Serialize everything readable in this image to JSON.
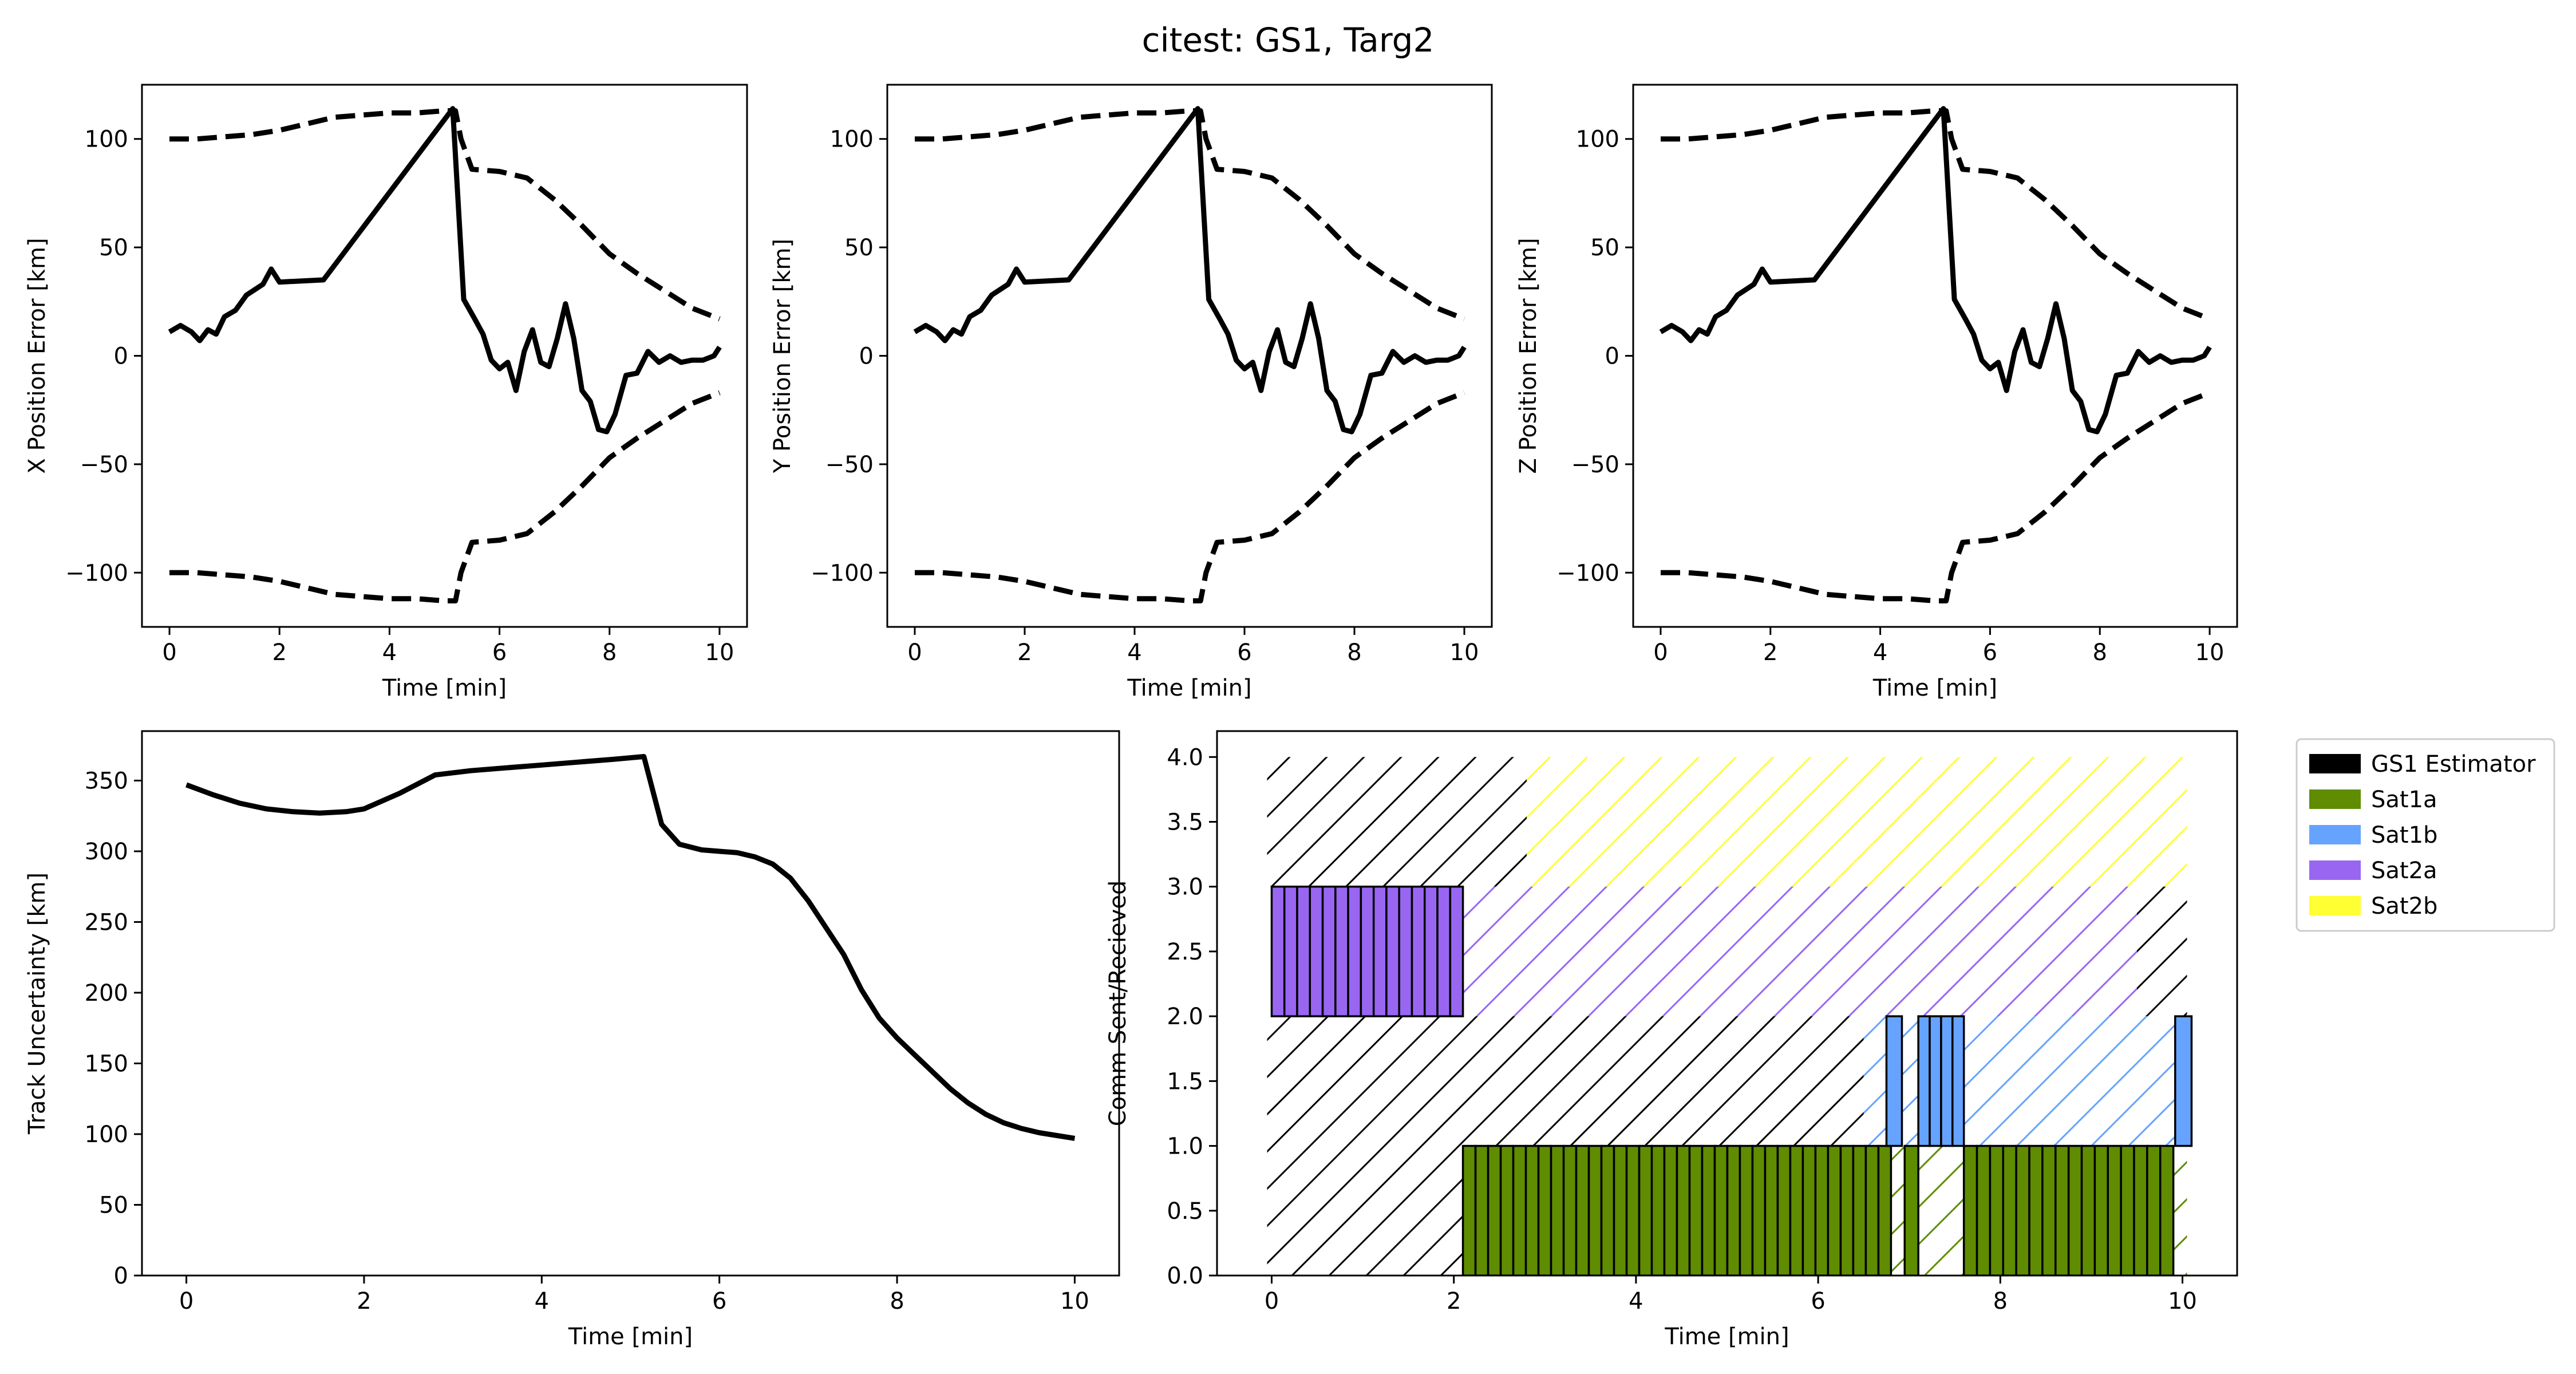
{
  "title": "citest: GS1, Targ2",
  "chart_data": [
    {
      "id": "x_error",
      "type": "line",
      "xlabel": "Time [min]",
      "ylabel": "X Position Error [km]",
      "xlim": [
        -0.5,
        10.5
      ],
      "ylim": [
        -125,
        125
      ],
      "xticks": [
        0,
        2,
        4,
        6,
        8,
        10
      ],
      "yticks": [
        -100,
        -50,
        0,
        50,
        100
      ],
      "grid": false,
      "series": [
        {
          "role": "error",
          "style": "solid",
          "x": [
            0,
            0.2,
            0.4,
            0.55,
            0.7,
            0.85,
            1.0,
            1.2,
            1.4,
            1.7,
            1.85,
            2.0,
            2.8,
            5.15,
            5.35,
            5.55,
            5.7,
            5.85,
            6.0,
            6.15,
            6.3,
            6.45,
            6.6,
            6.75,
            6.9,
            7.05,
            7.2,
            7.35,
            7.5,
            7.65,
            7.8,
            7.95,
            8.1,
            8.3,
            8.5,
            8.7,
            8.9,
            9.1,
            9.3,
            9.5,
            9.7,
            9.9,
            10.0
          ],
          "y": [
            11,
            14,
            11,
            7,
            12,
            10,
            18,
            21,
            28,
            33,
            40,
            34,
            35,
            114,
            26,
            17,
            10,
            -2,
            -6,
            -3,
            -16,
            2,
            12,
            -3,
            -5,
            8,
            24,
            8,
            -16,
            -21,
            -34,
            -35,
            -27,
            -9,
            -8,
            2,
            -3,
            0,
            -3,
            -2,
            -2,
            0,
            4
          ]
        },
        {
          "role": "upper_bound",
          "style": "dashed",
          "x": [
            0,
            0.5,
            1,
            1.5,
            2,
            2.5,
            3,
            3.5,
            4,
            4.5,
            5,
            5.2,
            5.3,
            5.5,
            6,
            6.5,
            7,
            7.5,
            8,
            8.5,
            9,
            9.5,
            10
          ],
          "y": [
            100,
            100,
            101,
            102,
            104,
            107,
            110,
            111,
            112,
            112,
            113,
            113,
            100,
            86,
            85,
            82,
            72,
            60,
            47,
            38,
            30,
            22,
            17
          ]
        },
        {
          "role": "lower_bound",
          "style": "dashed",
          "x": [
            0,
            0.5,
            1,
            1.5,
            2,
            2.5,
            3,
            3.5,
            4,
            4.5,
            5,
            5.2,
            5.3,
            5.5,
            6,
            6.5,
            7,
            7.5,
            8,
            8.5,
            9,
            9.5,
            10
          ],
          "y": [
            -100,
            -100,
            -101,
            -102,
            -104,
            -107,
            -110,
            -111,
            -112,
            -112,
            -113,
            -113,
            -100,
            -86,
            -85,
            -82,
            -72,
            -60,
            -47,
            -38,
            -30,
            -22,
            -17
          ]
        }
      ]
    },
    {
      "id": "y_error",
      "type": "line",
      "xlabel": "Time [min]",
      "ylabel": "Y Position Error [km]",
      "xlim": [
        -0.5,
        10.5
      ],
      "ylim": [
        -125,
        125
      ],
      "xticks": [
        0,
        2,
        4,
        6,
        8,
        10
      ],
      "yticks": [
        -100,
        -50,
        0,
        50,
        100
      ],
      "grid": false,
      "series": [
        {
          "role": "error",
          "style": "solid",
          "x": [
            0,
            0.2,
            0.4,
            0.55,
            0.7,
            0.85,
            1.0,
            1.2,
            1.4,
            1.7,
            1.85,
            2.0,
            2.8,
            5.15,
            5.35,
            5.55,
            5.7,
            5.85,
            6.0,
            6.15,
            6.3,
            6.45,
            6.6,
            6.75,
            6.9,
            7.05,
            7.2,
            7.35,
            7.5,
            7.65,
            7.8,
            7.95,
            8.1,
            8.3,
            8.5,
            8.7,
            8.9,
            9.1,
            9.3,
            9.5,
            9.7,
            9.9,
            10.0
          ],
          "y": [
            11,
            14,
            11,
            7,
            12,
            10,
            18,
            21,
            28,
            33,
            40,
            34,
            35,
            114,
            26,
            17,
            10,
            -2,
            -6,
            -3,
            -16,
            2,
            12,
            -3,
            -5,
            8,
            24,
            8,
            -16,
            -21,
            -34,
            -35,
            -27,
            -9,
            -8,
            2,
            -3,
            0,
            -3,
            -2,
            -2,
            0,
            4
          ]
        },
        {
          "role": "upper_bound",
          "style": "dashed",
          "x": [
            0,
            0.5,
            1,
            1.5,
            2,
            2.5,
            3,
            3.5,
            4,
            4.5,
            5,
            5.2,
            5.3,
            5.5,
            6,
            6.5,
            7,
            7.5,
            8,
            8.5,
            9,
            9.5,
            10
          ],
          "y": [
            100,
            100,
            101,
            102,
            104,
            107,
            110,
            111,
            112,
            112,
            113,
            113,
            100,
            86,
            85,
            82,
            72,
            60,
            47,
            38,
            30,
            22,
            17
          ]
        },
        {
          "role": "lower_bound",
          "style": "dashed",
          "x": [
            0,
            0.5,
            1,
            1.5,
            2,
            2.5,
            3,
            3.5,
            4,
            4.5,
            5,
            5.2,
            5.3,
            5.5,
            6,
            6.5,
            7,
            7.5,
            8,
            8.5,
            9,
            9.5,
            10
          ],
          "y": [
            -100,
            -100,
            -101,
            -102,
            -104,
            -107,
            -110,
            -111,
            -112,
            -112,
            -113,
            -113,
            -100,
            -86,
            -85,
            -82,
            -72,
            -60,
            -47,
            -38,
            -30,
            -22,
            -17
          ]
        }
      ]
    },
    {
      "id": "z_error",
      "type": "line",
      "xlabel": "Time [min]",
      "ylabel": "Z Position Error [km]",
      "xlim": [
        -0.5,
        10.5
      ],
      "ylim": [
        -125,
        125
      ],
      "xticks": [
        0,
        2,
        4,
        6,
        8,
        10
      ],
      "yticks": [
        -100,
        -50,
        0,
        50,
        100
      ],
      "grid": false,
      "series": [
        {
          "role": "error",
          "style": "solid",
          "x": [
            0,
            0.2,
            0.4,
            0.55,
            0.7,
            0.85,
            1.0,
            1.2,
            1.4,
            1.7,
            1.85,
            2.0,
            2.8,
            5.15,
            5.35,
            5.55,
            5.7,
            5.85,
            6.0,
            6.15,
            6.3,
            6.45,
            6.6,
            6.75,
            6.9,
            7.05,
            7.2,
            7.35,
            7.5,
            7.65,
            7.8,
            7.95,
            8.1,
            8.3,
            8.5,
            8.7,
            8.9,
            9.1,
            9.3,
            9.5,
            9.7,
            9.9,
            10.0
          ],
          "y": [
            11,
            14,
            11,
            7,
            12,
            10,
            18,
            21,
            28,
            33,
            40,
            34,
            35,
            114,
            26,
            17,
            10,
            -2,
            -6,
            -3,
            -16,
            2,
            12,
            -3,
            -5,
            8,
            24,
            8,
            -16,
            -21,
            -34,
            -35,
            -27,
            -9,
            -8,
            2,
            -3,
            0,
            -3,
            -2,
            -2,
            0,
            4
          ]
        },
        {
          "role": "upper_bound",
          "style": "dashed",
          "x": [
            0,
            0.5,
            1,
            1.5,
            2,
            2.5,
            3,
            3.5,
            4,
            4.5,
            5,
            5.2,
            5.3,
            5.5,
            6,
            6.5,
            7,
            7.5,
            8,
            8.5,
            9,
            9.5,
            10
          ],
          "y": [
            100,
            100,
            101,
            102,
            104,
            107,
            110,
            111,
            112,
            112,
            113,
            113,
            100,
            86,
            85,
            82,
            72,
            60,
            47,
            38,
            30,
            22,
            17
          ]
        },
        {
          "role": "lower_bound",
          "style": "dashed",
          "x": [
            0,
            0.5,
            1,
            1.5,
            2,
            2.5,
            3,
            3.5,
            4,
            4.5,
            5,
            5.2,
            5.3,
            5.5,
            6,
            6.5,
            7,
            7.5,
            8,
            8.5,
            9,
            9.5,
            10
          ],
          "y": [
            -100,
            -100,
            -101,
            -102,
            -104,
            -107,
            -110,
            -111,
            -112,
            -112,
            -113,
            -113,
            -100,
            -86,
            -85,
            -82,
            -72,
            -60,
            -47,
            -38,
            -30,
            -22,
            -17
          ]
        }
      ]
    },
    {
      "id": "track_uncertainty",
      "type": "line",
      "xlabel": "Time [min]",
      "ylabel": "Track Uncertainty [km]",
      "xlim": [
        -0.5,
        10.5
      ],
      "ylim": [
        0,
        385
      ],
      "xticks": [
        0,
        2,
        4,
        6,
        8,
        10
      ],
      "yticks": [
        0,
        50,
        100,
        150,
        200,
        250,
        300,
        350
      ],
      "grid": false,
      "series": [
        {
          "role": "uncertainty",
          "style": "solid",
          "x": [
            0,
            0.3,
            0.6,
            0.9,
            1.2,
            1.5,
            1.8,
            2.0,
            2.4,
            2.8,
            3.2,
            3.6,
            4.0,
            4.4,
            4.8,
            5.15,
            5.35,
            5.55,
            5.8,
            6.0,
            6.2,
            6.4,
            6.6,
            6.8,
            7.0,
            7.2,
            7.4,
            7.6,
            7.8,
            8.0,
            8.2,
            8.4,
            8.6,
            8.8,
            9.0,
            9.2,
            9.4,
            9.6,
            9.8,
            10.0
          ],
          "y": [
            347,
            340,
            334,
            330,
            328,
            327,
            328,
            330,
            341,
            354,
            357,
            359,
            361,
            363,
            365,
            367,
            319,
            305,
            301,
            300,
            299,
            296,
            291,
            281,
            265,
            246,
            227,
            202,
            182,
            168,
            156,
            144,
            132,
            122,
            114,
            108,
            104,
            101,
            99,
            97
          ]
        }
      ]
    },
    {
      "id": "comm",
      "type": "bar",
      "xlabel": "Time [min]",
      "ylabel": "Comm Sent/Recieved",
      "xlim": [
        -0.6,
        10.6
      ],
      "ylim": [
        0,
        4.2
      ],
      "xticks": [
        0,
        2,
        4,
        6,
        8,
        10
      ],
      "yticks": [
        0.0,
        0.5,
        1.0,
        1.5,
        2.0,
        2.5,
        3.0,
        3.5,
        4.0
      ],
      "legend_position": "outside-top-right",
      "legend": [
        {
          "name": "GS1 Estimator",
          "color": "#000000"
        },
        {
          "name": "Sat1a",
          "color": "#5f8c00"
        },
        {
          "name": "Sat1b",
          "color": "#66a3ff"
        },
        {
          "name": "Sat2a",
          "color": "#9966f2"
        },
        {
          "name": "Sat2b",
          "color": "#ffff33"
        }
      ],
      "bar_width_min": 0.14,
      "hatched_bands": [
        {
          "color": "#000000",
          "x": [
            -0.05,
            2.8
          ],
          "y": [
            3,
            4
          ]
        },
        {
          "color": "#ffff33",
          "x": [
            2.8,
            10.05
          ],
          "y": [
            3,
            4
          ]
        },
        {
          "color": "#9966f2",
          "x": [
            2.1,
            9.5
          ],
          "y": [
            2,
            3
          ]
        },
        {
          "color": "#000000",
          "x": [
            9.5,
            10.05
          ],
          "y": [
            2,
            3
          ]
        },
        {
          "color": "#000000",
          "x": [
            -0.05,
            6.5
          ],
          "y": [
            1,
            2
          ]
        },
        {
          "color": "#66a3ff",
          "x": [
            6.5,
            10.05
          ],
          "y": [
            1,
            2
          ]
        },
        {
          "color": "#000000",
          "x": [
            -0.05,
            2.1
          ],
          "y": [
            0,
            1
          ]
        },
        {
          "color": "#5f8c00",
          "x": [
            2.1,
            10.05
          ],
          "y": [
            0,
            1
          ]
        }
      ],
      "bar_groups": [
        {
          "name": "Sat2a",
          "color": "#9966f2",
          "x_start": 0.0,
          "x_end": 2.1,
          "y": [
            2,
            3
          ]
        },
        {
          "name": "Sat1a",
          "color": "#5f8c00",
          "x_start": 2.1,
          "x_end": 6.8,
          "y": [
            0,
            1
          ]
        },
        {
          "name": "Sat1a",
          "color": "#5f8c00",
          "x_start": 6.95,
          "x_end": 7.1,
          "y": [
            0,
            1
          ]
        },
        {
          "name": "Sat1a",
          "color": "#5f8c00",
          "x_start": 7.6,
          "x_end": 9.9,
          "y": [
            0,
            1
          ]
        },
        {
          "name": "Sat1b",
          "color": "#66a3ff",
          "x_start": 6.75,
          "x_end": 6.92,
          "y": [
            1,
            2
          ]
        },
        {
          "name": "Sat1b",
          "color": "#66a3ff",
          "x_start": 7.1,
          "x_end": 7.6,
          "y": [
            1,
            2
          ]
        },
        {
          "name": "Sat1b",
          "color": "#66a3ff",
          "x_start": 9.92,
          "x_end": 10.1,
          "y": [
            1,
            2
          ]
        }
      ]
    }
  ]
}
